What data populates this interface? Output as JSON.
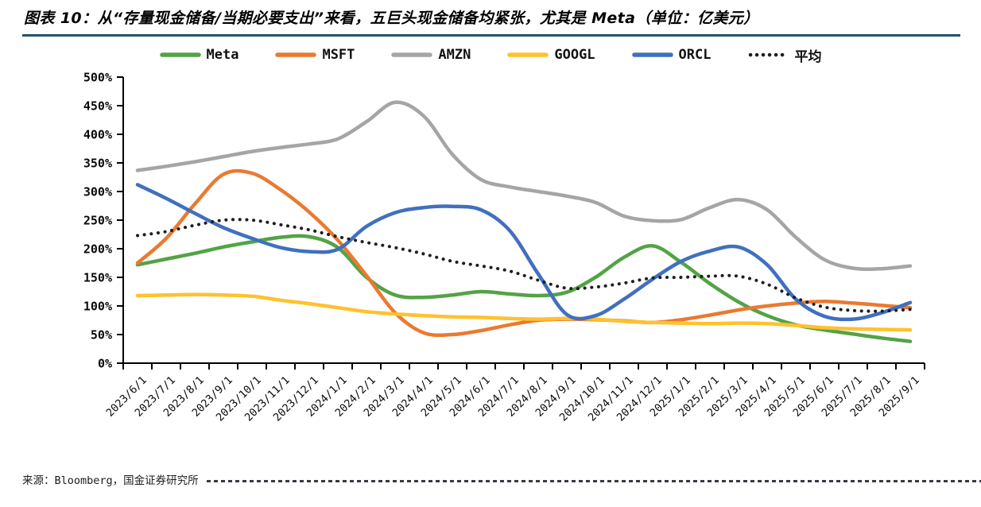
{
  "figure": {
    "title": "图表 10：从“存量现金储备/当期必要支出”来看，五巨头现金储备均紧张，尤其是 Meta（单位：亿美元）"
  },
  "footer": {
    "source": "来源：Bloomberg，国金证券研究所"
  },
  "chart_data": {
    "type": "line",
    "title": "",
    "xlabel": "",
    "ylabel": "",
    "ylim": [
      0,
      500
    ],
    "ytick_step": 50,
    "ytick_format": "percent",
    "grid": false,
    "legend_position": "top",
    "categories": [
      "2023/6/1",
      "2023/7/1",
      "2023/8/1",
      "2023/9/1",
      "2023/10/1",
      "2023/11/1",
      "2023/12/1",
      "2024/1/1",
      "2024/2/1",
      "2024/3/1",
      "2024/4/1",
      "2024/5/1",
      "2024/6/1",
      "2024/7/1",
      "2024/8/1",
      "2024/9/1",
      "2024/10/1",
      "2024/11/1",
      "2024/12/1",
      "2025/1/1",
      "2025/2/1",
      "2025/3/1",
      "2025/4/1",
      "2025/5/1",
      "2025/6/1",
      "2025/7/1",
      "2025/8/1",
      "2025/9/1"
    ],
    "series": [
      {
        "name": "Meta",
        "color": "#53A346",
        "style": "solid",
        "values": [
          172,
          182,
          192,
          203,
          212,
          220,
          221,
          202,
          150,
          119,
          115,
          119,
          125,
          121,
          118,
          124,
          150,
          185,
          205,
          176,
          139,
          107,
          83,
          67,
          58,
          51,
          44,
          38
        ]
      },
      {
        "name": "MSFT",
        "color": "#E97A31",
        "style": "solid",
        "values": [
          175,
          218,
          278,
          330,
          332,
          303,
          264,
          215,
          153,
          88,
          53,
          50,
          57,
          67,
          75,
          77,
          76,
          74,
          71,
          76,
          84,
          93,
          100,
          105,
          108,
          105,
          101,
          97
        ]
      },
      {
        "name": "AMZN",
        "color": "#A5A5A5",
        "style": "solid",
        "values": [
          337,
          344,
          352,
          361,
          370,
          377,
          383,
          392,
          422,
          456,
          432,
          365,
          321,
          308,
          300,
          292,
          281,
          257,
          249,
          251,
          272,
          286,
          268,
          220,
          181,
          166,
          165,
          170
        ]
      },
      {
        "name": "GOOGL",
        "color": "#FFC12E",
        "style": "solid",
        "values": [
          118,
          119,
          120,
          119,
          117,
          110,
          104,
          97,
          90,
          86,
          83,
          81,
          80,
          78,
          77,
          78,
          77,
          73,
          71,
          70,
          69,
          70,
          69,
          66,
          62,
          60,
          59,
          58
        ]
      },
      {
        "name": "ORCL",
        "color": "#4070BE",
        "style": "solid",
        "values": [
          312,
          288,
          262,
          237,
          218,
          202,
          195,
          199,
          239,
          263,
          272,
          274,
          268,
          232,
          156,
          85,
          83,
          112,
          147,
          178,
          196,
          203,
          172,
          112,
          82,
          77,
          88,
          106
        ]
      },
      {
        "name": "平均",
        "color": "#1F1F1F",
        "style": "dotted",
        "values": [
          223,
          230,
          241,
          250,
          250,
          242,
          233,
          221,
          211,
          202,
          191,
          178,
          170,
          161,
          145,
          131,
          133,
          140,
          149,
          150,
          152,
          152,
          138,
          114,
          98,
          92,
          91,
          94
        ]
      }
    ]
  }
}
